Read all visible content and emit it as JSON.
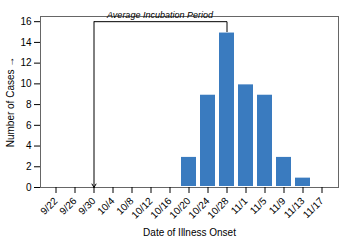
{
  "chart_data": {
    "type": "bar",
    "categories": [
      "9/22",
      "9/26",
      "9/30",
      "10/4",
      "10/8",
      "10/12",
      "10/16",
      "10/20",
      "10/24",
      "10/28",
      "11/1",
      "11/5",
      "11/9",
      "11/13",
      "11/17"
    ],
    "values": [
      0,
      0,
      0,
      0,
      0,
      0,
      0,
      3,
      9,
      15,
      10,
      9,
      3,
      1,
      0
    ],
    "color": "#3a7bbf",
    "xlabel": "Date of Illness Onset",
    "ylabel": "Number of Cases",
    "ylim": [
      0,
      16.5
    ],
    "yticks": [
      0,
      2,
      4,
      6,
      8,
      10,
      12,
      14,
      16
    ],
    "annotations": [
      {
        "text": "Average Incubation Period",
        "start": "9/30",
        "end": "10/28",
        "y": 16
      }
    ]
  }
}
